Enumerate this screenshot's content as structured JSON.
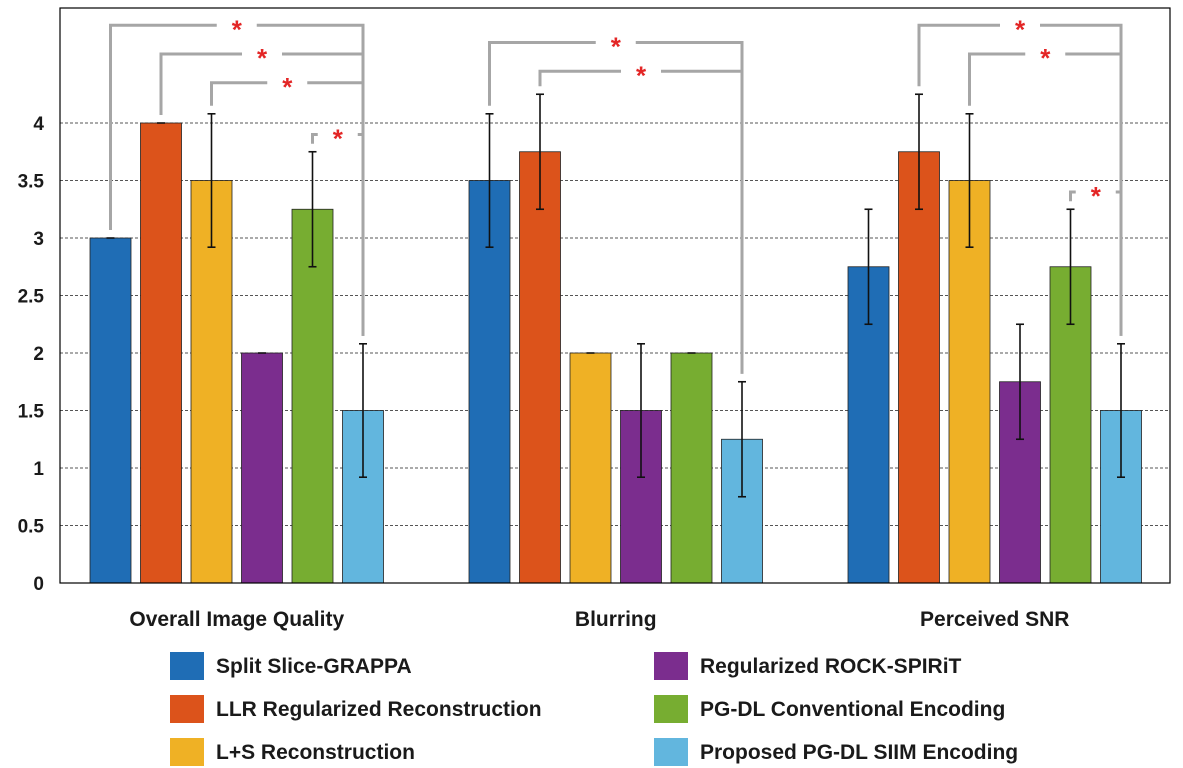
{
  "chart_data": {
    "type": "bar",
    "categories": [
      "Overall Image Quality",
      "Blurring",
      "Perceived SNR"
    ],
    "ylim": [
      0,
      4.6
    ],
    "yticks": [
      0,
      0.5,
      1,
      1.5,
      2,
      2.5,
      3,
      3.5,
      4
    ],
    "ytick_labels": [
      "0",
      "0.5",
      "1",
      "1.5",
      "2",
      "2.5",
      "3",
      "3.5",
      "4"
    ],
    "grid": "horizontal-dashed",
    "legend_position": "bottom",
    "series": [
      {
        "name": "Split Slice-GRAPPA",
        "color": "#1f6db5",
        "values": [
          3.0,
          3.5,
          2.75
        ],
        "errors": [
          0.0,
          0.58,
          0.5
        ]
      },
      {
        "name": "LLR Regularized Reconstruction",
        "color": "#dc531b",
        "values": [
          4.0,
          3.75,
          3.75
        ],
        "errors": [
          0.0,
          0.5,
          0.5
        ]
      },
      {
        "name": "L+S Reconstruction",
        "color": "#efb125",
        "values": [
          3.5,
          2.0,
          3.5
        ],
        "errors": [
          0.58,
          0.0,
          0.58
        ]
      },
      {
        "name": "Regularized ROCK-SPIRiT",
        "color": "#7b2d8e",
        "values": [
          2.0,
          1.5,
          1.75
        ],
        "errors": [
          0.0,
          0.58,
          0.5
        ]
      },
      {
        "name": "PG-DL Conventional Encoding",
        "color": "#77ad31",
        "values": [
          3.25,
          2.0,
          2.75
        ],
        "errors": [
          0.5,
          0.0,
          0.5
        ]
      },
      {
        "name": "Proposed PG-DL SIIM Encoding",
        "color": "#62b6de",
        "values": [
          1.5,
          1.25,
          1.5
        ],
        "errors": [
          0.58,
          0.5,
          0.58
        ]
      }
    ],
    "significance": [
      {
        "category": 0,
        "from_series": 0,
        "to_series": 5,
        "level": 4.85,
        "label": "*"
      },
      {
        "category": 0,
        "from_series": 1,
        "to_series": 5,
        "level": 4.6,
        "label": "*"
      },
      {
        "category": 0,
        "from_series": 2,
        "to_series": 5,
        "level": 4.35,
        "label": "*"
      },
      {
        "category": 0,
        "from_series": 4,
        "to_series": 5,
        "level": 3.9,
        "label": "*"
      },
      {
        "category": 1,
        "from_series": 0,
        "to_series": 5,
        "level": 4.7,
        "label": "*"
      },
      {
        "category": 1,
        "from_series": 1,
        "to_series": 5,
        "level": 4.45,
        "label": "*"
      },
      {
        "category": 2,
        "from_series": 1,
        "to_series": 5,
        "level": 4.85,
        "label": "*"
      },
      {
        "category": 2,
        "from_series": 2,
        "to_series": 5,
        "level": 4.6,
        "label": "*"
      },
      {
        "category": 2,
        "from_series": 4,
        "to_series": 5,
        "level": 3.4,
        "label": "*"
      }
    ]
  }
}
